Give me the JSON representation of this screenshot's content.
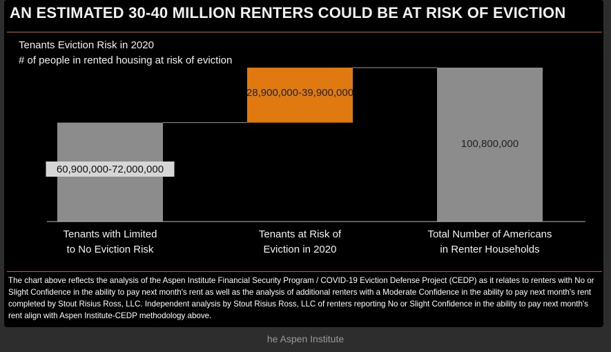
{
  "headline": "AN ESTIMATED 30-40 MILLION RENTERS COULD BE AT RISK OF EVICTION",
  "chart_data": {
    "type": "bar",
    "title": "Tenants Eviction Risk in 2020",
    "subtitle": "# of people in rented housing at risk of eviction",
    "categories": [
      "Tenants with Limited to No Eviction Risk",
      "Tenants at Risk of Eviction in 2020",
      "Total Number of Americans in Renter Households"
    ],
    "category_lines": [
      [
        "Tenants with Limited",
        "to No Eviction Risk"
      ],
      [
        "Tenants at Risk of",
        "Eviction in 2020"
      ],
      [
        "Total Number of Americans",
        "in Renter Households"
      ]
    ],
    "bars": [
      {
        "label": "60,900,000-72,000,000",
        "start": 0,
        "end": 64800000,
        "color": "#8c8c8c"
      },
      {
        "label": "28,900,000-39,900,000",
        "start": 64800000,
        "end": 100800000,
        "color": "#e07a10"
      },
      {
        "label": "100,800,000",
        "start": 0,
        "end": 100800000,
        "color": "#8c8c8c"
      }
    ],
    "ylim": [
      0,
      100800000
    ]
  },
  "footnote": "The chart above reflects the analysis of the Aspen Institute Financial Security Program / COVID-19 Eviction Defense Project (CEDP) as it relates to renters with No or Slight Confidence in the ability to pay next month's rent as well as the analysis of additional renters with a Moderate Confidence in the ability to pay next month's rent completed by Stout Risius Ross, LLC. Independent analysis by Stout Risius Ross, LLC of renters reporting No or Slight Confidence in the ability to pay next month's rent align with Aspen Institute-CEDP methodology above.",
  "caption": "he Aspen Institute"
}
